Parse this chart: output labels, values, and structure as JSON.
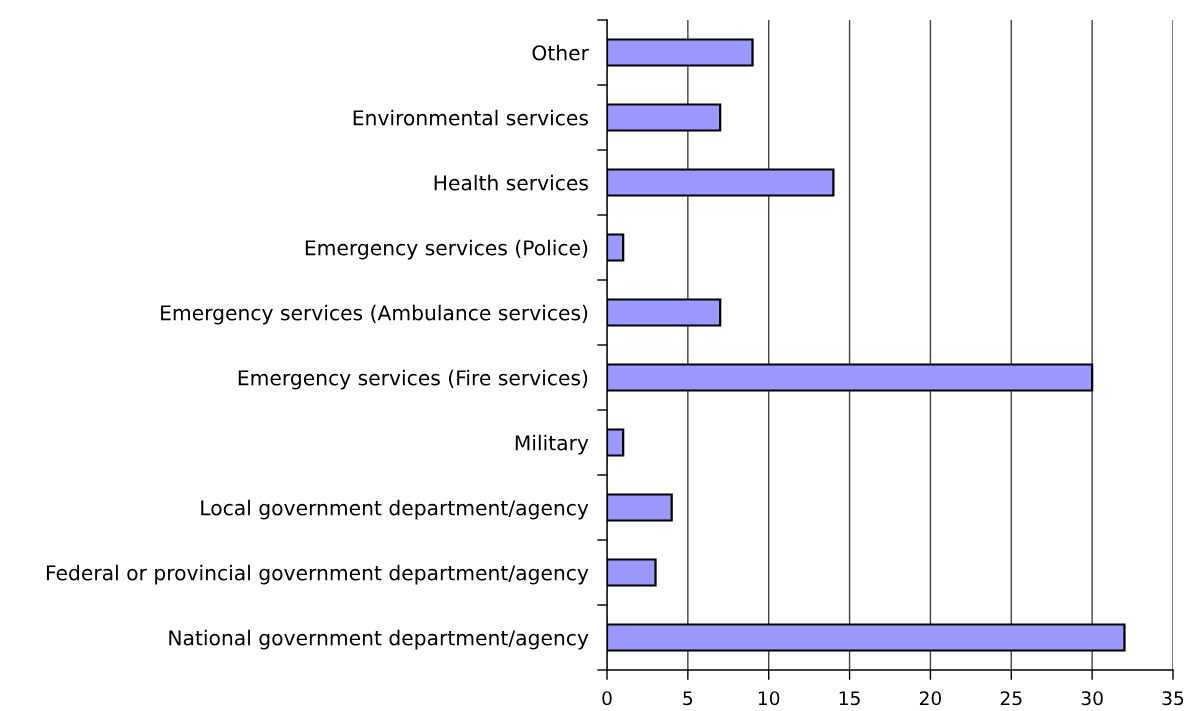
{
  "chart_data": {
    "type": "bar",
    "orientation": "horizontal",
    "categories": [
      "Other",
      "Environmental services",
      "Health services",
      "Emergency services (Police)",
      "Emergency services (Ambulance services)",
      "Emergency services (Fire services)",
      "Military",
      "Local government department/agency",
      "Federal or provincial government department/agency",
      "National government department/agency"
    ],
    "values": [
      9,
      7,
      14,
      1,
      7,
      30,
      1,
      4,
      3,
      32
    ],
    "color": "#9999ff",
    "xlim": [
      0,
      35
    ],
    "xticks": [
      0,
      5,
      10,
      15,
      20,
      25,
      30,
      35
    ],
    "grid": "x"
  }
}
